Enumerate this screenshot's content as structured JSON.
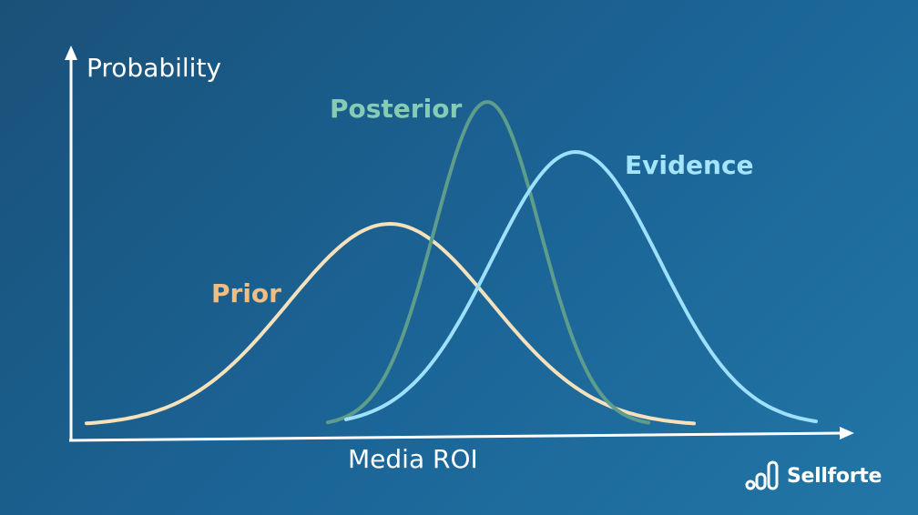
{
  "diagram": {
    "y_axis_label": "Probability",
    "x_axis_label": "Media ROI",
    "curves": {
      "prior": {
        "label": "Prior",
        "color": "#f6e1bd",
        "label_color": "#f1be7f"
      },
      "posterior": {
        "label": "Posterior",
        "color": "#5e9c8c",
        "label_color": "#86ccb4"
      },
      "evidence": {
        "label": "Evidence",
        "color": "#9de0ff",
        "label_color": "#a4e4ff"
      }
    },
    "axis_color": "#ffffff"
  },
  "brand": {
    "name": "Sellforte",
    "icon": "sellforte-logo-icon"
  }
}
